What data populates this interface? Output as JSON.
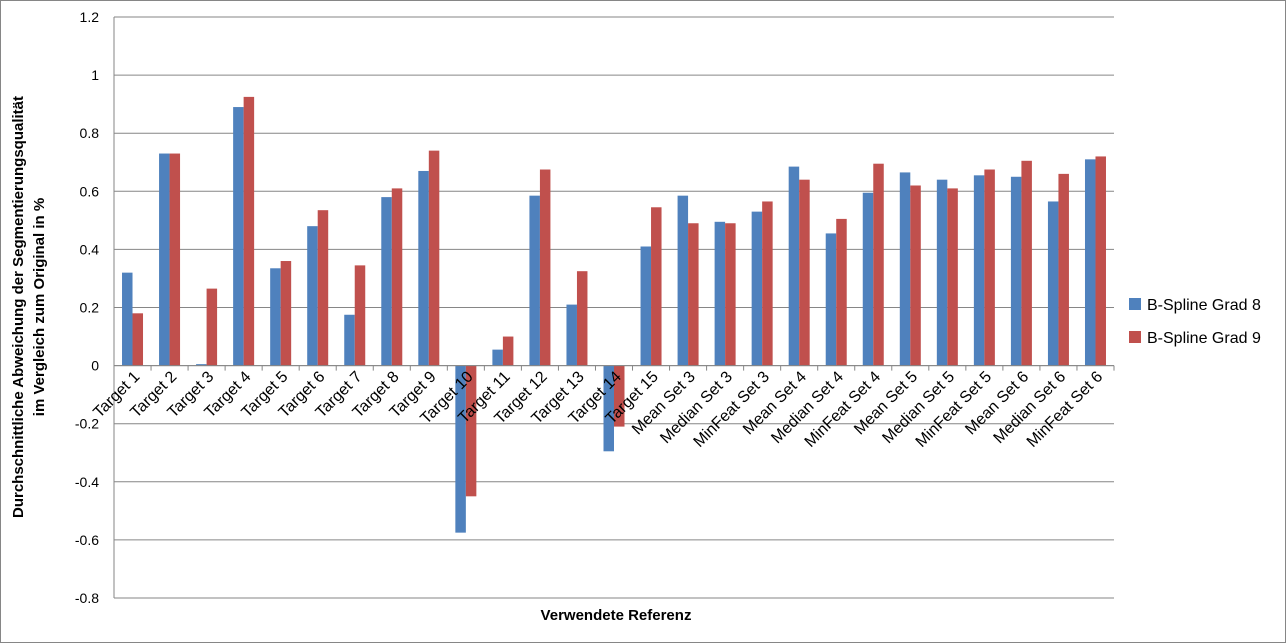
{
  "chart_data": {
    "type": "bar",
    "title": "",
    "xlabel": "Verwendete Referenz",
    "ylabel_lines": [
      "Durchschnittliche Abweichung der Segmentierungsqualität",
      "im Vergleich  zum Original in %"
    ],
    "ylim": [
      -0.8,
      1.2
    ],
    "yticks": [
      1.2,
      1,
      0.8,
      0.6,
      0.4,
      0.2,
      0,
      -0.2,
      -0.4,
      -0.6,
      -0.8
    ],
    "grid": true,
    "legend_position": "right",
    "categories": [
      "Target 1",
      "Target 2",
      "Target 3",
      "Target 4",
      "Target 5",
      "Target 6",
      "Target 7",
      "Target 8",
      "Target 9",
      "Target 10",
      "Target 11",
      "Target 12",
      "Target 13",
      "Target 14",
      "Target 15",
      "Mean Set 3",
      "Median Set 3",
      "MinFeat Set 3",
      "Mean Set 4",
      "Median Set 4",
      "MinFeat Set 4",
      "Mean Set 5",
      "Median Set 5",
      "MinFeat Set 5",
      "Mean Set 6",
      "Median Set 6",
      "MinFeat Set 6"
    ],
    "series": [
      {
        "name": "B-Spline Grad 8",
        "color": "#4f81bd",
        "values": [
          0.32,
          0.73,
          0.005,
          0.89,
          0.335,
          0.48,
          0.175,
          0.58,
          0.67,
          -0.575,
          0.055,
          0.585,
          0.21,
          -0.295,
          0.41,
          0.585,
          0.495,
          0.53,
          0.685,
          0.455,
          0.595,
          0.665,
          0.64,
          0.655,
          0.65,
          0.565,
          0.71
        ]
      },
      {
        "name": "B-Spline Grad 9",
        "color": "#c0504d",
        "values": [
          0.18,
          0.73,
          0.265,
          0.925,
          0.36,
          0.535,
          0.345,
          0.61,
          0.74,
          -0.45,
          0.1,
          0.675,
          0.325,
          -0.21,
          0.545,
          0.49,
          0.49,
          0.565,
          0.64,
          0.505,
          0.695,
          0.62,
          0.61,
          0.675,
          0.705,
          0.66,
          0.72
        ]
      }
    ]
  }
}
